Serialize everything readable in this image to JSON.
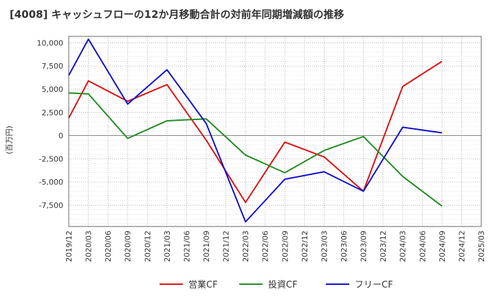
{
  "chart_data": {
    "type": "line",
    "title": "[4008]  キャッシュフローの12か月移動合計の対前年同期増減額の推移",
    "ylabel": "(百万円)",
    "xlabel": "",
    "ylim": [
      -9800,
      10700
    ],
    "yticks": [
      10000,
      7500,
      5000,
      2500,
      0,
      -2500,
      -5000,
      -7500
    ],
    "ytick_labels": [
      "10,000",
      "7,500",
      "5,000",
      "2,500",
      "0",
      "-2,500",
      "-5,000",
      "-7,500"
    ],
    "x_labels": [
      "2019/12",
      "2020/03",
      "2020/06",
      "2020/09",
      "2020/12",
      "2021/03",
      "2021/06",
      "2021/09",
      "2021/12",
      "2022/03",
      "2022/06",
      "2022/09",
      "2022/12",
      "2023/03",
      "2023/06",
      "2023/09",
      "2023/12",
      "2024/03",
      "2024/06",
      "2024/09",
      "2024/12",
      "2025/03"
    ],
    "grid": true,
    "legend_position": "bottom",
    "series": [
      {
        "name": "営業CF",
        "color": "#dd1111",
        "points": [
          [
            0,
            1900
          ],
          [
            1,
            5900
          ],
          [
            3,
            3700
          ],
          [
            5,
            5500
          ],
          [
            7,
            -500
          ],
          [
            9,
            -7200
          ],
          [
            11,
            -700
          ],
          [
            13,
            -2300
          ],
          [
            15,
            -6000
          ],
          [
            17,
            5300
          ],
          [
            19,
            8000
          ]
        ]
      },
      {
        "name": "投資CF",
        "color": "#228B22",
        "points": [
          [
            0,
            4600
          ],
          [
            1,
            4500
          ],
          [
            3,
            -300
          ],
          [
            5,
            1600
          ],
          [
            7,
            1800
          ],
          [
            9,
            -2100
          ],
          [
            11,
            -4000
          ],
          [
            13,
            -1600
          ],
          [
            15,
            -100
          ],
          [
            17,
            -4400
          ],
          [
            19,
            -7600
          ]
        ]
      },
      {
        "name": "フリーCF",
        "color": "#1111cc",
        "points": [
          [
            0,
            6500
          ],
          [
            1,
            10400
          ],
          [
            3,
            3400
          ],
          [
            5,
            7100
          ],
          [
            7,
            1300
          ],
          [
            9,
            -9300
          ],
          [
            11,
            -4700
          ],
          [
            13,
            -3900
          ],
          [
            15,
            -6000
          ],
          [
            17,
            900
          ],
          [
            19,
            300
          ]
        ]
      }
    ]
  }
}
